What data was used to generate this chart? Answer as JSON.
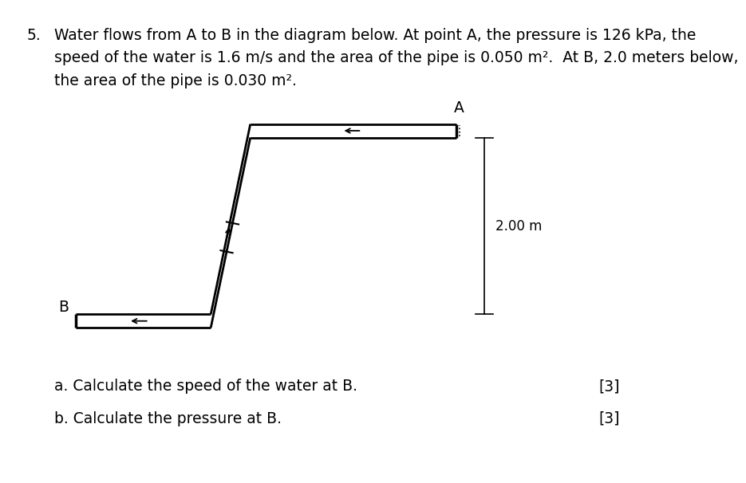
{
  "question_number": "5.",
  "question_text_line1": "Water flows from A to B in the diagram below. At point A, the pressure is 126 kPa, the",
  "question_text_line2": "speed of the water is 1.6 m/s and the area of the pipe is 0.050 m².  At B, 2.0 meters below,",
  "question_text_line3": "the area of the pipe is 0.030 m².",
  "sub_a": "a. Calculate the speed of the water at B.",
  "sub_b": "b. Calculate the pressure at B.",
  "mark_a": "[3]",
  "mark_b": "[3]",
  "dim_label": "2.00 m",
  "label_A": "A",
  "label_B": "B",
  "pipe_color": "#000000",
  "bg_color": "#ffffff",
  "text_color": "#000000",
  "pipe_lw": 2.0,
  "text_fontsize": 13.5,
  "sub_fontsize": 13.5,
  "label_fontsize": 13.5,
  "dim_fontsize": 12.0
}
